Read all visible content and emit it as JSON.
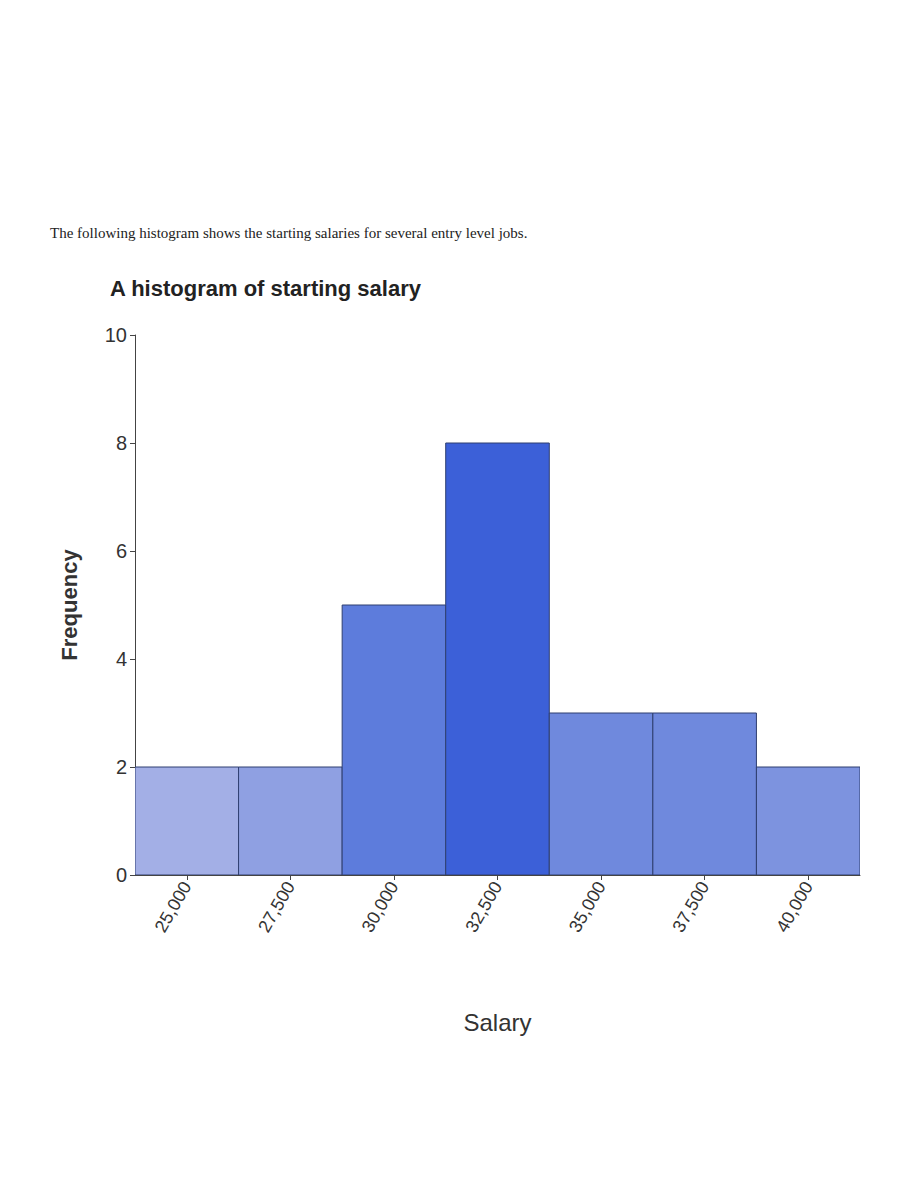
{
  "chart_data": {
    "type": "histogram",
    "subtitle": "The following histogram shows the starting salaries for several entry level jobs.",
    "title": "A histogram of starting salary",
    "x_label": "Salary",
    "y_label": "Frequency",
    "bins": [
      23750,
      26250,
      28750,
      31250,
      33750,
      36250,
      38750,
      41250
    ],
    "values": [
      2,
      2,
      5,
      8,
      3,
      3,
      2
    ],
    "colors": [
      "#a3afe6",
      "#8fa0e2",
      "#5d7cdc",
      "#3c60d8",
      "#6f89dd",
      "#6f89dd",
      "#7d93df"
    ],
    "xlim": [
      23750,
      41250
    ],
    "xticks": [
      {
        "value": 25000,
        "label": "25,000"
      },
      {
        "value": 27500,
        "label": "27,500"
      },
      {
        "value": 30000,
        "label": "30,000"
      },
      {
        "value": 32500,
        "label": "32,500"
      },
      {
        "value": 35000,
        "label": "35,000"
      },
      {
        "value": 37500,
        "label": "37,500"
      },
      {
        "value": 40000,
        "label": "40,000"
      }
    ],
    "ylim": [
      0,
      10
    ],
    "yticks": [
      0,
      2,
      4,
      6,
      8,
      10
    ],
    "grid": false
  }
}
